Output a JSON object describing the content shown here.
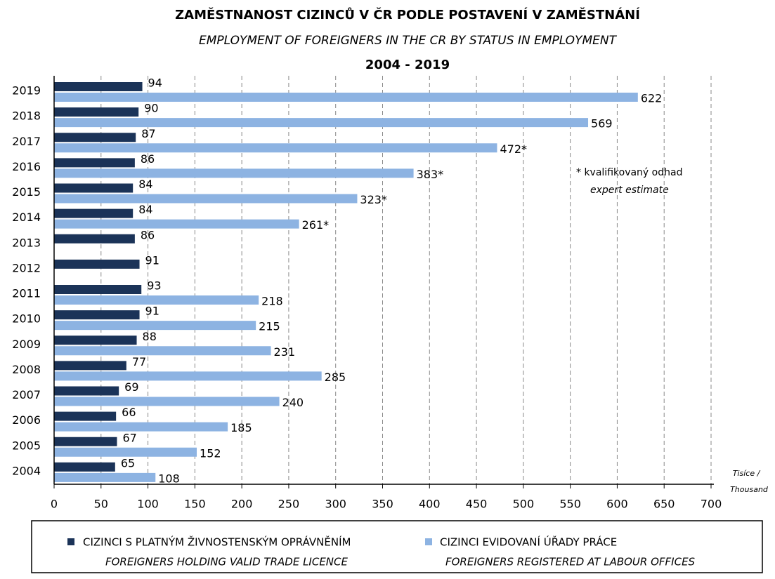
{
  "chart_data": {
    "type": "hbar",
    "title": "ZAMĚSTNANOST CIZINCŮ V ČR PODLE POSTAVENÍ V ZAMĚSTNÁNÍ",
    "subtitle": "EMPLOYMENT OF FOREIGNERS IN THE CR BY STATUS IN EMPLOYMENT",
    "period": "2004 - 2019",
    "unit_label": [
      "Tisíce /",
      "Thousand"
    ],
    "note": [
      "* kvalifikovaný odhad",
      "expert estimate"
    ],
    "categories": [
      "2019",
      "2018",
      "2017",
      "2016",
      "2015",
      "2014",
      "2013",
      "2012",
      "2011",
      "2010",
      "2009",
      "2008",
      "2007",
      "2006",
      "2005",
      "2004"
    ],
    "series": [
      {
        "name": "CIZINCI S PLATNÝM ŽIVNOSTENSKÝM OPRÁVNĚNÍM",
        "name_en": "FOREIGNERS HOLDING VALID TRADE LICENCE",
        "color": "#1b3358",
        "values": [
          94,
          90,
          87,
          86,
          84,
          84,
          86,
          91,
          93,
          91,
          88,
          77,
          69,
          66,
          67,
          65
        ]
      },
      {
        "name": "CIZINCI EVIDOVANÍ ÚŘADY PRÁCE",
        "name_en": "FOREIGNERS REGISTERED AT LABOUR OFFICES",
        "color": "#8db3e2",
        "values": [
          622,
          569,
          472,
          383,
          323,
          261,
          null,
          null,
          218,
          215,
          231,
          285,
          240,
          185,
          152,
          108
        ],
        "value_labels": [
          "622",
          "569",
          "472*",
          "383*",
          "323*",
          "261*",
          null,
          null,
          "218",
          "215",
          "231",
          "285",
          "240",
          "185",
          "152",
          "108"
        ]
      }
    ],
    "xlim": [
      0,
      700
    ],
    "xticks": [
      0,
      50,
      100,
      150,
      200,
      250,
      300,
      350,
      400,
      450,
      500,
      550,
      600,
      650,
      700
    ],
    "grid": true
  }
}
